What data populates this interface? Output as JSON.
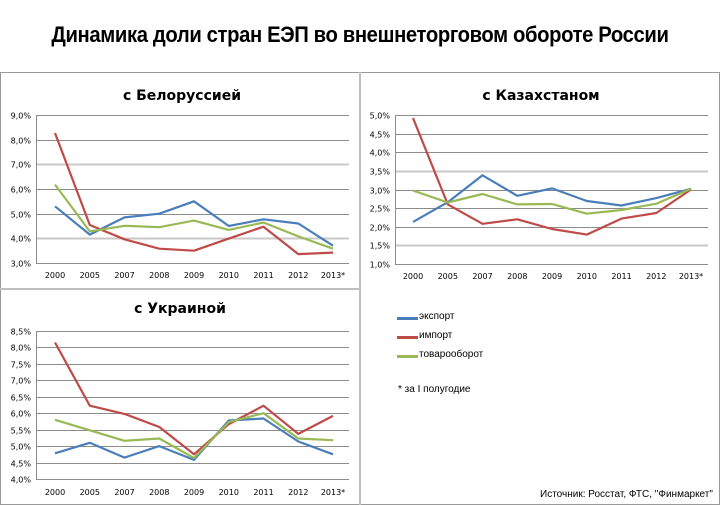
{
  "title": "Динамика доли стран ЕЭП во внешнеторговом обороте России",
  "colors": {
    "export": "#4a7ebb",
    "import": "#be4b48",
    "total": "#98b954",
    "grid": "#8c8c8c",
    "grid_light": "#c8c8c8"
  },
  "legend": {
    "items": [
      {
        "key": "export",
        "label": "экспорт"
      },
      {
        "key": "import",
        "label": "импорт"
      },
      {
        "key": "total",
        "label": "товарооборот"
      }
    ],
    "placement": "bottom-right"
  },
  "footnote": "* за I полугодие",
  "source": "Источник: Росстат, ФТС, \"Финмаркет\"",
  "chart_data": [
    {
      "type": "line",
      "title": "с Белоруссией",
      "categories": [
        "2000",
        "2005",
        "2007",
        "2008",
        "2009",
        "2010",
        "2011",
        "2012",
        "2013*"
      ],
      "ylim": [
        3.0,
        9.0
      ],
      "yticks": [
        "3,0%",
        "4,0%",
        "5,0%",
        "6,0%",
        "7,0%",
        "8,0%",
        "9,0%"
      ],
      "ytick_values": [
        3,
        4,
        5,
        6,
        7,
        8,
        9
      ],
      "grid": true,
      "series": [
        {
          "name": "экспорт",
          "key": "export",
          "values": [
            5.3,
            4.15,
            4.85,
            5.0,
            5.5,
            4.5,
            4.77,
            4.6,
            3.7
          ]
        },
        {
          "name": "импорт",
          "key": "import",
          "values": [
            8.27,
            4.54,
            3.96,
            3.58,
            3.5,
            3.99,
            4.47,
            3.36,
            3.42
          ]
        },
        {
          "name": "товарооборот",
          "key": "total",
          "values": [
            6.18,
            4.28,
            4.51,
            4.45,
            4.72,
            4.34,
            4.64,
            4.08,
            3.58
          ]
        }
      ]
    },
    {
      "type": "line",
      "title": "с Казахстаном",
      "categories": [
        "2000",
        "2005",
        "2007",
        "2008",
        "2009",
        "2010",
        "2011",
        "2012",
        "2013*"
      ],
      "ylim": [
        1.0,
        5.0
      ],
      "yticks": [
        "1,0%",
        "1,5%",
        "2,0%",
        "2,5%",
        "3,0%",
        "3,5%",
        "4,0%",
        "4,5%",
        "5,0%"
      ],
      "ytick_values": [
        1.0,
        1.5,
        2.0,
        2.5,
        3.0,
        3.5,
        4.0,
        4.5,
        5.0
      ],
      "grid": true,
      "series": [
        {
          "name": "экспорт",
          "key": "export",
          "values": [
            2.13,
            2.66,
            3.38,
            2.83,
            3.03,
            2.69,
            2.57,
            2.77,
            3.02
          ]
        },
        {
          "name": "импорт",
          "key": "import",
          "values": [
            4.92,
            2.6,
            2.08,
            2.2,
            1.94,
            1.79,
            2.22,
            2.37,
            3.0
          ]
        },
        {
          "name": "товарооборот",
          "key": "total",
          "values": [
            2.97,
            2.65,
            2.88,
            2.6,
            2.61,
            2.35,
            2.45,
            2.62,
            3.02
          ]
        }
      ]
    },
    {
      "type": "line",
      "title": "с Украиной",
      "categories": [
        "2000",
        "2005",
        "2007",
        "2008",
        "2009",
        "2010",
        "2011",
        "2012",
        "2013*"
      ],
      "ylim": [
        4.0,
        8.5
      ],
      "yticks": [
        "4,0%",
        "4,5%",
        "5,0%",
        "5,5%",
        "6,0%",
        "6,5%",
        "7,0%",
        "7,5%",
        "8,0%",
        "8,5%"
      ],
      "ytick_values": [
        4.0,
        4.5,
        5.0,
        5.5,
        6.0,
        6.5,
        7.0,
        7.5,
        8.0,
        8.5
      ],
      "grid": true,
      "series": [
        {
          "name": "экспорт",
          "key": "export",
          "values": [
            4.78,
            5.1,
            4.65,
            5.0,
            4.58,
            5.78,
            5.84,
            5.14,
            4.75
          ]
        },
        {
          "name": "импорт",
          "key": "import",
          "values": [
            8.15,
            6.23,
            5.98,
            5.58,
            4.75,
            5.67,
            6.23,
            5.37,
            5.92
          ]
        },
        {
          "name": "товарооборот",
          "key": "total",
          "values": [
            5.8,
            5.48,
            5.16,
            5.23,
            4.64,
            5.73,
            6.0,
            5.23,
            5.18
          ]
        }
      ]
    }
  ]
}
